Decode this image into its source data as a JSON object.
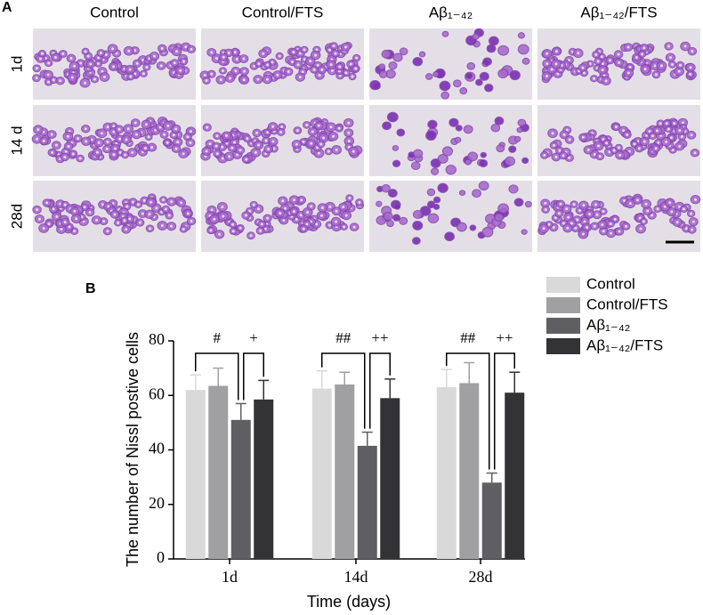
{
  "panel_a": {
    "label": "A",
    "columns": [
      "Control",
      "Control/FTS",
      "Aβ₁₋₄₂",
      "Aβ₁₋₄₂/FTS"
    ],
    "rows": [
      "1d",
      "14 d",
      "28d"
    ]
  },
  "chart_data": {
    "type": "bar",
    "panel_label": "B",
    "x_label": "Time (days)",
    "y_label": "The number of Nissl postive cells",
    "categories": [
      "1d",
      "14d",
      "28d"
    ],
    "series": [
      {
        "name": "Control",
        "color": "#d9d9d9",
        "values": [
          62,
          62.5,
          63
        ],
        "errors": [
          5.5,
          6.5,
          6.5
        ]
      },
      {
        "name": "Control/FTS",
        "color": "#a0a0a3",
        "values": [
          63.5,
          64,
          64.5
        ],
        "errors": [
          6.5,
          4.5,
          7.5
        ]
      },
      {
        "name": "Aβ₁₋₄₂",
        "color": "#5f5f63",
        "values": [
          51,
          41.5,
          28
        ],
        "errors": [
          6,
          5,
          3.5
        ]
      },
      {
        "name": "Aβ₁₋₄₂/FTS",
        "color": "#333336",
        "values": [
          58.5,
          59,
          61
        ],
        "errors": [
          7,
          7,
          7.5
        ]
      }
    ],
    "significance": [
      [
        "#",
        "+"
      ],
      [
        "##",
        "++"
      ],
      [
        "##",
        "++"
      ]
    ],
    "ylim": [
      0,
      80
    ],
    "yticks": [
      0,
      20,
      40,
      60,
      80
    ],
    "legend": "upper right"
  }
}
